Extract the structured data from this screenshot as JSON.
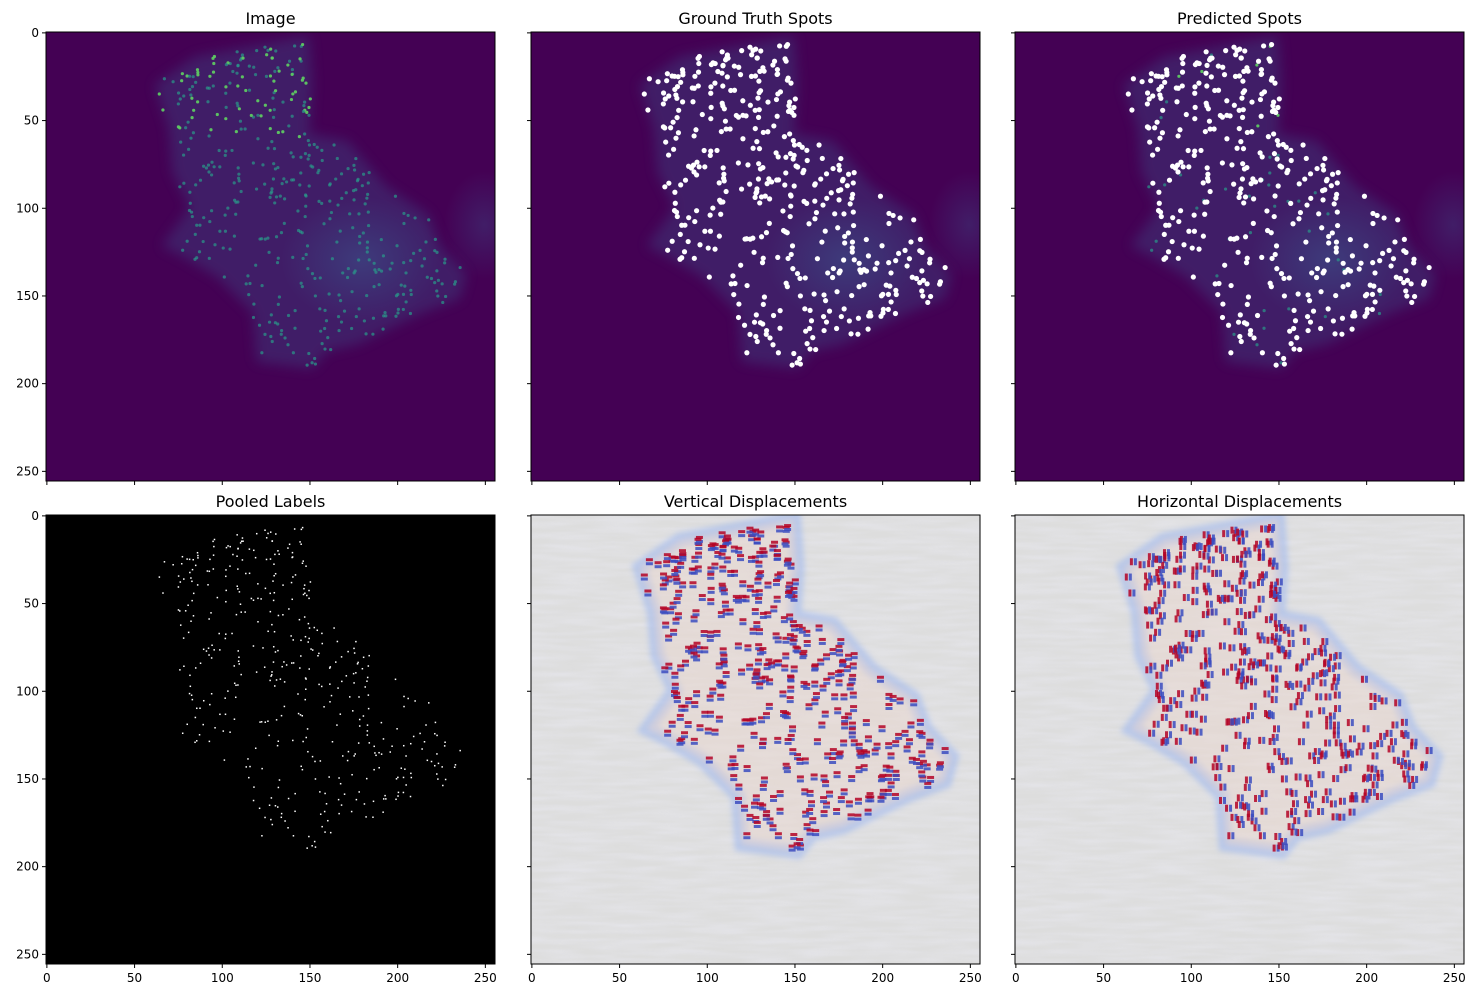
{
  "chart_data": [
    {
      "type": "heatmap",
      "title": "Image",
      "colormap": "viridis",
      "xlim": [
        0,
        256
      ],
      "ylim": [
        256,
        0
      ],
      "x_ticks": [],
      "y_ticks": [
        "0",
        "50",
        "100",
        "150",
        "200",
        "250"
      ]
    },
    {
      "type": "heatmap",
      "title": "Ground Truth Spots",
      "colormap": "viridis",
      "overlay": "white spot markers",
      "xlim": [
        0,
        256
      ],
      "ylim": [
        256,
        0
      ],
      "x_ticks": [],
      "y_ticks": []
    },
    {
      "type": "heatmap",
      "title": "Predicted Spots",
      "colormap": "viridis",
      "overlay": "white spot markers",
      "xlim": [
        0,
        256
      ],
      "ylim": [
        256,
        0
      ],
      "x_ticks": [],
      "y_ticks": []
    },
    {
      "type": "heatmap",
      "title": "Pooled Labels",
      "colormap": "gray",
      "xlim": [
        0,
        256
      ],
      "ylim": [
        256,
        0
      ],
      "x_ticks": [
        "0",
        "50",
        "100",
        "150",
        "200",
        "250"
      ],
      "y_ticks": [
        "0",
        "50",
        "100",
        "150",
        "200",
        "250"
      ]
    },
    {
      "type": "heatmap",
      "title": "Vertical Displacements",
      "colormap": "coolwarm",
      "xlim": [
        0,
        256
      ],
      "ylim": [
        256,
        0
      ],
      "x_ticks": [
        "0",
        "50",
        "100",
        "150",
        "200",
        "250"
      ],
      "y_ticks": []
    },
    {
      "type": "heatmap",
      "title": "Horizontal Displacements",
      "colormap": "coolwarm",
      "xlim": [
        0,
        256
      ],
      "ylim": [
        256,
        0
      ],
      "x_ticks": [
        "0",
        "50",
        "100",
        "150",
        "200",
        "250"
      ],
      "y_ticks": []
    }
  ],
  "colors": {
    "viridis_bg": "#440154",
    "viridis_mid": "#3b528b",
    "viridis_high": "#5ec962",
    "spot_marker": "#ffffff",
    "gray_bg": "#000000",
    "coolwarm_low": "#3b4cc0",
    "coolwarm_mid": "#dddddd",
    "coolwarm_high": "#b40426"
  }
}
